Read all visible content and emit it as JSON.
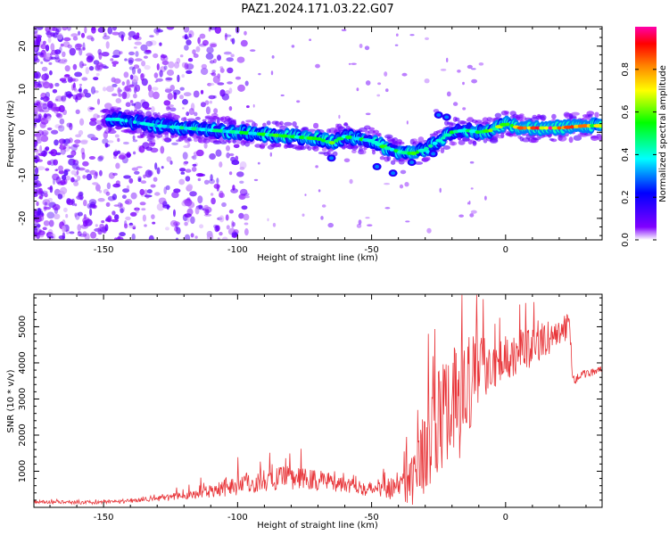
{
  "figure_title": "PAZ1.2024.171.03.22.G07",
  "chart_data": [
    {
      "type": "heatmap",
      "title": "",
      "xlabel": "Height of straight line (km)",
      "ylabel": "Frequency (Hz)",
      "xlim": [
        -176,
        36
      ],
      "ylim": [
        -25,
        24.5
      ],
      "x_ticks": [
        -150,
        -100,
        -50,
        0
      ],
      "y_ticks": [
        -20,
        -10,
        0,
        10,
        20
      ],
      "colorbar": {
        "label": "Normalized spectral amplitude",
        "range": [
          0,
          1
        ],
        "ticks": [
          0.0,
          0.2,
          0.4,
          0.6,
          0.8
        ],
        "colors": [
          "#ffffff",
          "#8000ff",
          "#0000ff",
          "#00ffff",
          "#00ff00",
          "#ffff00",
          "#ff8000",
          "#ff0000",
          "#ff00aa"
        ]
      },
      "ridge": {
        "description_values": "dominant frequency (Hz) vs height (km)",
        "x": [
          -145,
          -130,
          -120,
          -110,
          -100,
          -90,
          -80,
          -70,
          -65,
          -60,
          -55,
          -50,
          -45,
          -40,
          -35,
          -30,
          -25,
          -20,
          -15,
          -10,
          -5,
          0,
          5,
          10,
          20,
          30,
          36
        ],
        "y": [
          3,
          1.5,
          1,
          0.5,
          0,
          -0.5,
          -1,
          -1.5,
          -2.5,
          -1,
          -1.5,
          -2,
          -3.5,
          -4.5,
          -5,
          -4,
          -2,
          0,
          0.5,
          0,
          0.5,
          2,
          1,
          1,
          1,
          1.5,
          1.5
        ],
        "amplitude": [
          0.35,
          0.4,
          0.4,
          0.45,
          0.45,
          0.5,
          0.5,
          0.5,
          0.55,
          0.45,
          0.45,
          0.45,
          0.5,
          0.45,
          0.55,
          0.45,
          0.45,
          0.45,
          0.45,
          0.5,
          0.55,
          0.6,
          0.75,
          0.9,
          0.85,
          0.7,
          0.65
        ]
      }
    },
    {
      "type": "line",
      "title": "",
      "xlabel": "Height of straight line (km)",
      "ylabel": "SNR (10 * v/v)",
      "xlim": [
        -176,
        36
      ],
      "ylim": [
        0,
        5900
      ],
      "x_ticks": [
        -150,
        -100,
        -50,
        0
      ],
      "y_ticks": [
        1000,
        2000,
        3000,
        4000,
        5000
      ],
      "color": "#e8363a",
      "series": [
        {
          "x": [
            -176,
            -170,
            -160,
            -150,
            -140,
            -130,
            -120,
            -115,
            -110,
            -105,
            -100,
            -95,
            -90,
            -85,
            -80,
            -75,
            -70,
            -65,
            -60,
            -55,
            -50,
            -45,
            -40,
            -35,
            -30,
            -25,
            -20,
            -15,
            -12,
            -10,
            -5,
            0,
            5,
            10,
            15,
            20,
            24,
            25,
            30,
            36
          ],
          "y": [
            150,
            140,
            130,
            130,
            180,
            250,
            300,
            360,
            450,
            550,
            600,
            650,
            700,
            750,
            800,
            750,
            720,
            700,
            650,
            600,
            450,
            500,
            550,
            700,
            1500,
            2200,
            2600,
            2800,
            3600,
            3800,
            3900,
            4100,
            4200,
            4400,
            4600,
            4800,
            5000,
            3500,
            3700,
            3800
          ],
          "spread": [
            60,
            60,
            60,
            60,
            80,
            120,
            150,
            200,
            250,
            350,
            400,
            400,
            400,
            400,
            450,
            400,
            400,
            350,
            350,
            300,
            300,
            350,
            500,
            1000,
            1500,
            1800,
            2000,
            2200,
            1500,
            1200,
            900,
            800,
            700,
            700,
            600,
            500,
            500,
            150,
            150,
            120
          ]
        }
      ]
    }
  ]
}
